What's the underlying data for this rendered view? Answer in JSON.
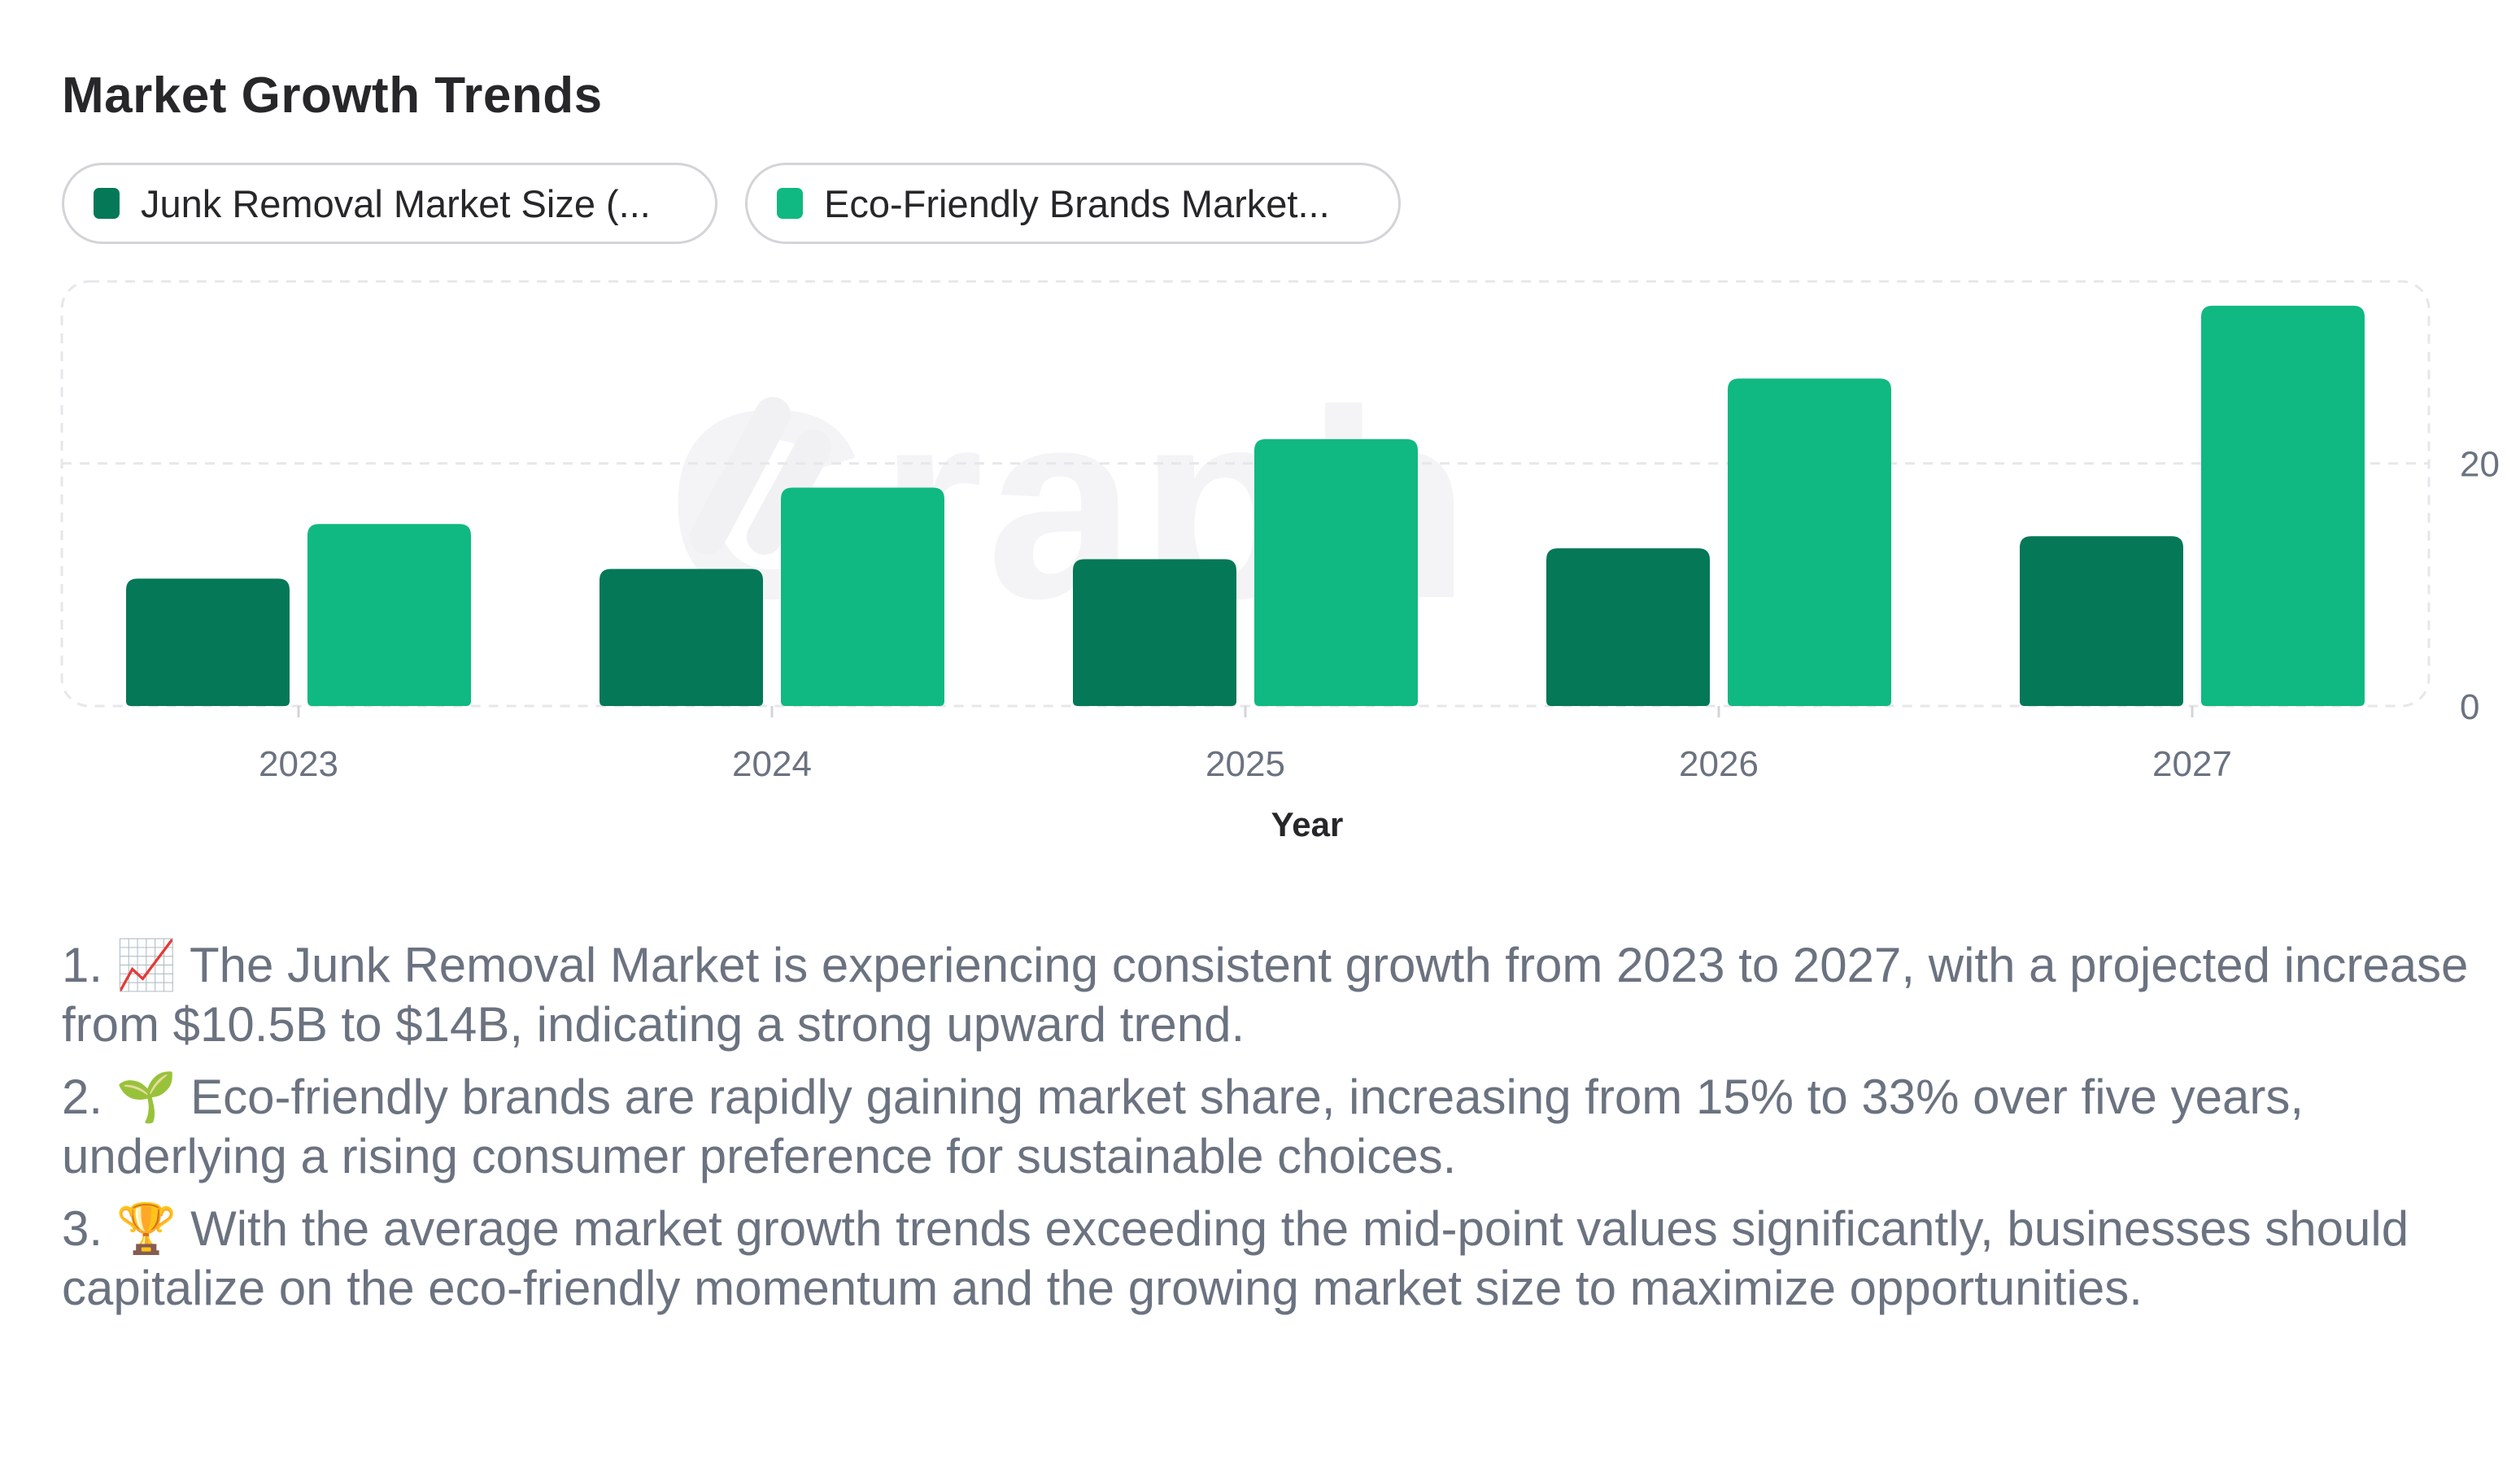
{
  "title": "Market Growth Trends",
  "legend": [
    {
      "label": "Junk Removal Market Size (...",
      "color": "#047857"
    },
    {
      "label": "Eco-Friendly Brands Market...",
      "color": "#10b981"
    }
  ],
  "watermark": "Graph",
  "chart_data": {
    "type": "bar",
    "categories": [
      "2023",
      "2024",
      "2025",
      "2026",
      "2027"
    ],
    "series": [
      {
        "name": "Junk Removal Market Size (...",
        "values": [
          10.5,
          11.3,
          12.1,
          13.0,
          14.0
        ],
        "color": "#047857"
      },
      {
        "name": "Eco-Friendly Brands Market...",
        "values": [
          15,
          18,
          22,
          27,
          33
        ],
        "color": "#10b981"
      }
    ],
    "xlabel": "Year",
    "ylabel": "",
    "yticks": [
      0,
      20
    ],
    "ylim": [
      0,
      35
    ],
    "grid": true,
    "legend_position": "top-left"
  },
  "insights": [
    "1. 📈 The Junk Removal Market is experiencing consistent growth from 2023 to 2027, with a projected increase from $10.5B to $14B, indicating a strong upward trend.",
    "2. 🌱 Eco-friendly brands are rapidly gaining market share, increasing from 15% to 33% over five years, underlying a rising consumer preference for sustainable choices.",
    "3. 🏆 With the average market growth trends exceeding the mid-point values significantly, businesses should capitalize on the eco-friendly momentum and the growing market size to maximize opportunities."
  ]
}
